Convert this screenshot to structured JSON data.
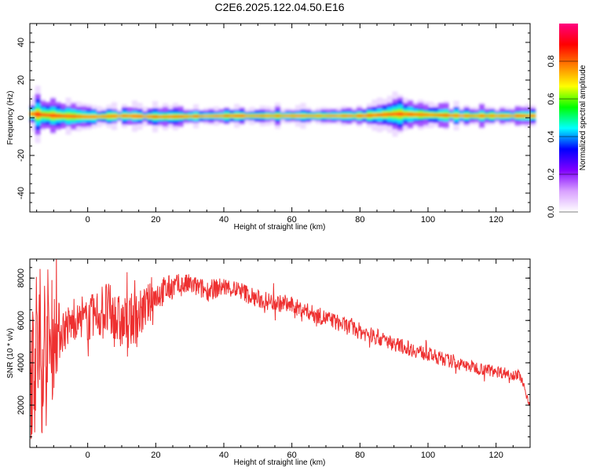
{
  "title": "C2E6.2025.122.04.50.E16",
  "chart_data": [
    {
      "type": "heatmap",
      "xlabel": "Height of straight line (km)",
      "ylabel": "Frequency (Hz)",
      "xlim": [
        -17,
        130
      ],
      "ylim": [
        -50,
        50
      ],
      "x_ticks": [
        "0",
        "20",
        "40",
        "60",
        "80",
        "100",
        "120"
      ],
      "y_ticks": [
        "-40",
        "-20",
        "0",
        "20",
        "40"
      ],
      "colorbar": {
        "label": "Normalized spectral amplitude",
        "range": [
          0,
          1
        ],
        "ticks": [
          "0.0",
          "0.2",
          "0.4",
          "0.6",
          "0.8"
        ],
        "colors": [
          "#ffffff",
          "#d8a0ff",
          "#8000ff",
          "#0000ff",
          "#00ffff",
          "#00ff00",
          "#ffff00",
          "#ff8000",
          "#ff0000",
          "#ff0080"
        ]
      },
      "band": {
        "center_hz": [
          {
            "x": -17,
            "y": 2
          },
          {
            "x": -10,
            "y": 1
          },
          {
            "x": 0,
            "y": 0.5
          },
          {
            "x": 10,
            "y": 1
          },
          {
            "x": 20,
            "y": 0.5
          },
          {
            "x": 40,
            "y": 1
          },
          {
            "x": 60,
            "y": 1
          },
          {
            "x": 80,
            "y": 1
          },
          {
            "x": 90,
            "y": 2
          },
          {
            "x": 100,
            "y": 1.5
          },
          {
            "x": 110,
            "y": 1
          },
          {
            "x": 130,
            "y": 1
          }
        ],
        "half_width_hz": [
          {
            "x": -17,
            "y": 6
          },
          {
            "x": -10,
            "y": 5
          },
          {
            "x": 0,
            "y": 3
          },
          {
            "x": 20,
            "y": 3
          },
          {
            "x": 40,
            "y": 2.5
          },
          {
            "x": 80,
            "y": 2.5
          },
          {
            "x": 90,
            "y": 5
          },
          {
            "x": 100,
            "y": 3.5
          },
          {
            "x": 130,
            "y": 2.5
          }
        ]
      }
    },
    {
      "type": "line",
      "xlabel": "Height of straight line (km)",
      "ylabel": "SNR (10 * v/v)",
      "xlim": [
        -17,
        130
      ],
      "ylim": [
        0,
        8900
      ],
      "x_ticks": [
        "0",
        "20",
        "40",
        "60",
        "80",
        "100",
        "120"
      ],
      "y_ticks": [
        "2000",
        "4000",
        "6000",
        "8000"
      ],
      "series": [
        {
          "color": "#ee3030",
          "envelope": [
            {
              "x": -17,
              "mean": 4500,
              "spread": 4200
            },
            {
              "x": -12,
              "mean": 4800,
              "spread": 4000
            },
            {
              "x": -8,
              "mean": 5500,
              "spread": 1200
            },
            {
              "x": -3,
              "mean": 6000,
              "spread": 800
            },
            {
              "x": 0,
              "mean": 6000,
              "spread": 1000
            },
            {
              "x": 5,
              "mean": 6500,
              "spread": 1500
            },
            {
              "x": 10,
              "mean": 5800,
              "spread": 1300
            },
            {
              "x": 15,
              "mean": 6200,
              "spread": 1200
            },
            {
              "x": 20,
              "mean": 7200,
              "spread": 800
            },
            {
              "x": 25,
              "mean": 7600,
              "spread": 600
            },
            {
              "x": 30,
              "mean": 7700,
              "spread": 500
            },
            {
              "x": 35,
              "mean": 7400,
              "spread": 500
            },
            {
              "x": 40,
              "mean": 7600,
              "spread": 450
            },
            {
              "x": 45,
              "mean": 7400,
              "spread": 450
            },
            {
              "x": 50,
              "mean": 7000,
              "spread": 450
            },
            {
              "x": 60,
              "mean": 6700,
              "spread": 400
            },
            {
              "x": 70,
              "mean": 6100,
              "spread": 400
            },
            {
              "x": 80,
              "mean": 5500,
              "spread": 400
            },
            {
              "x": 90,
              "mean": 4900,
              "spread": 350
            },
            {
              "x": 100,
              "mean": 4400,
              "spread": 350
            },
            {
              "x": 110,
              "mean": 3900,
              "spread": 300
            },
            {
              "x": 120,
              "mean": 3600,
              "spread": 300
            },
            {
              "x": 127,
              "mean": 3400,
              "spread": 250
            },
            {
              "x": 130,
              "mean": 2000,
              "spread": 200
            }
          ]
        }
      ]
    }
  ]
}
